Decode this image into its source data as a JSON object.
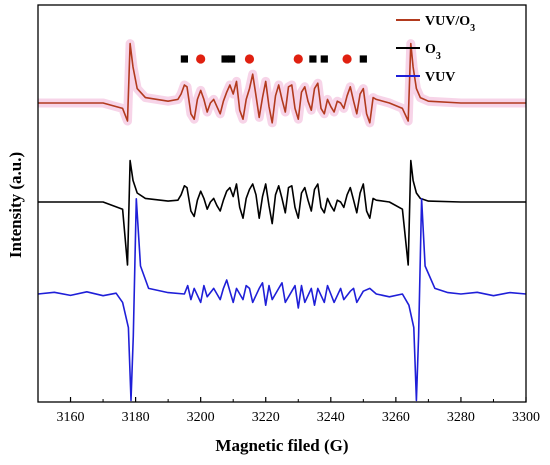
{
  "chart_data": {
    "type": "line",
    "title": "",
    "xlabel": "Magnetic filed (G)",
    "ylabel": "Intensity (a.u.)",
    "xlim": [
      3150,
      3300
    ],
    "x_ticks": [
      3160,
      3180,
      3200,
      3220,
      3240,
      3260,
      3280,
      3300
    ],
    "y_ticks_visible": false,
    "grid": false,
    "legend_position": "top-right",
    "series": [
      {
        "name": "VUV/O3",
        "color": "#b23a1e",
        "highlight_color": "#f4c6e0",
        "x": [
          3150,
          3170,
          3176,
          3177.5,
          3178.3,
          3179.2,
          3180.5,
          3183,
          3190,
          3193,
          3194,
          3195,
          3195.8,
          3197,
          3198,
          3199,
          3200,
          3201,
          3202,
          3203,
          3204,
          3205,
          3206,
          3207,
          3208,
          3209,
          3210,
          3211,
          3212,
          3213,
          3214,
          3215,
          3216,
          3217,
          3218,
          3219,
          3220,
          3221,
          3222,
          3223,
          3224,
          3225,
          3226,
          3227,
          3228,
          3229,
          3230,
          3231,
          3232,
          3233,
          3234,
          3235,
          3236,
          3237,
          3238,
          3239,
          3240,
          3241,
          3242,
          3243,
          3244,
          3245,
          3246,
          3247,
          3248,
          3249,
          3250,
          3251,
          3252,
          3253,
          3254,
          3258,
          3262,
          3263.8,
          3264.6,
          3265.3,
          3266.3,
          3267.5,
          3270,
          3280,
          3290,
          3300
        ],
        "y": [
          0.0,
          0.0,
          -0.3,
          -1.0,
          3.3,
          2.0,
          0.8,
          0.3,
          0.1,
          0.2,
          0.5,
          1.0,
          0.9,
          -0.6,
          -0.9,
          0.2,
          0.7,
          0.2,
          -0.5,
          0.0,
          0.2,
          -0.2,
          -0.6,
          0.1,
          0.6,
          1.0,
          0.5,
          1.2,
          -0.4,
          -0.9,
          0.2,
          0.8,
          1.6,
          0.4,
          -0.8,
          0.3,
          1.2,
          -0.2,
          -1.1,
          0.4,
          1.0,
          0.2,
          -0.5,
          0.9,
          1.0,
          -0.3,
          -0.9,
          0.6,
          0.9,
          0.1,
          -0.4,
          0.8,
          1.1,
          -0.3,
          -0.6,
          0.2,
          -0.2,
          -0.5,
          0.1,
          0.0,
          -0.3,
          0.4,
          0.9,
          0.1,
          -0.6,
          0.5,
          0.8,
          -0.6,
          -1.1,
          0.3,
          0.2,
          0.0,
          -0.3,
          -1.0,
          3.3,
          2.0,
          0.8,
          0.3,
          0.1,
          0.0,
          0.0,
          0.0
        ],
        "hyperfine_markers": [
          {
            "x": 3195,
            "shape": "square",
            "color": "#000000"
          },
          {
            "x": 3200,
            "shape": "circle",
            "color": "#e02010"
          },
          {
            "x": 3207.5,
            "shape": "square",
            "color": "#000000"
          },
          {
            "x": 3209.5,
            "shape": "square",
            "color": "#000000"
          },
          {
            "x": 3215,
            "shape": "circle",
            "color": "#e02010"
          },
          {
            "x": 3230,
            "shape": "circle",
            "color": "#e02010"
          },
          {
            "x": 3234.5,
            "shape": "square",
            "color": "#000000"
          },
          {
            "x": 3238,
            "shape": "square",
            "color": "#000000"
          },
          {
            "x": 3245,
            "shape": "circle",
            "color": "#e02010"
          },
          {
            "x": 3250,
            "shape": "square",
            "color": "#000000"
          }
        ]
      },
      {
        "name": "O3",
        "color": "#000000",
        "x": [
          3150,
          3170,
          3176,
          3177.5,
          3178.3,
          3179.2,
          3180.5,
          3183,
          3190,
          3193,
          3194,
          3195,
          3195.8,
          3197,
          3198,
          3199,
          3200,
          3201,
          3202,
          3203,
          3204,
          3205,
          3206,
          3207,
          3208,
          3209,
          3210,
          3211,
          3212,
          3213,
          3214,
          3215,
          3216,
          3217,
          3218,
          3219,
          3220,
          3221,
          3222,
          3223,
          3224,
          3225,
          3226,
          3227,
          3228,
          3229,
          3230,
          3231,
          3232,
          3233,
          3234,
          3235,
          3236,
          3237,
          3238,
          3239,
          3240,
          3241,
          3242,
          3243,
          3244,
          3245,
          3246,
          3247,
          3248,
          3249,
          3250,
          3251,
          3252,
          3253,
          3254,
          3258,
          3262,
          3263.8,
          3264.6,
          3265.3,
          3266.3,
          3267.5,
          3270,
          3280,
          3290,
          3300
        ],
        "y": [
          0.0,
          0.0,
          -0.4,
          -3.5,
          2.3,
          1.2,
          0.5,
          0.2,
          0.05,
          0.1,
          0.4,
          0.9,
          0.8,
          -0.5,
          -0.8,
          0.1,
          0.6,
          0.2,
          -0.4,
          0.0,
          0.2,
          -0.2,
          -0.5,
          0.1,
          0.6,
          0.8,
          0.3,
          1.0,
          -0.3,
          -0.9,
          0.2,
          0.7,
          1.0,
          0.4,
          -0.9,
          0.3,
          1.0,
          -0.2,
          -1.2,
          0.4,
          0.9,
          0.2,
          -0.6,
          0.8,
          0.9,
          -0.3,
          -0.9,
          0.5,
          0.8,
          0.1,
          -0.5,
          0.7,
          1.0,
          -0.3,
          -0.6,
          0.2,
          -0.2,
          -0.5,
          0.1,
          0.0,
          -0.3,
          0.4,
          0.8,
          0.1,
          -0.6,
          0.5,
          1.0,
          -0.5,
          -0.9,
          0.2,
          0.1,
          0.0,
          -0.4,
          -3.5,
          2.3,
          1.2,
          0.5,
          0.2,
          0.05,
          0.0,
          0.0,
          0.0
        ]
      },
      {
        "name": "VUV",
        "color": "#1f1fd8",
        "x": [
          3150,
          3155,
          3160,
          3165,
          3170,
          3174,
          3176,
          3177.8,
          3178.6,
          3179.3,
          3180.2,
          3181.5,
          3184,
          3190,
          3195,
          3196,
          3197,
          3198,
          3200,
          3201,
          3202,
          3204,
          3206,
          3207,
          3208,
          3209,
          3210,
          3211,
          3213,
          3214,
          3215,
          3216,
          3218,
          3219,
          3220,
          3221,
          3222,
          3224,
          3225,
          3226,
          3228,
          3229,
          3230,
          3231,
          3232,
          3234,
          3235,
          3236,
          3238,
          3239,
          3240,
          3241,
          3243,
          3244,
          3246,
          3247,
          3248,
          3250,
          3252,
          3254,
          3258,
          3262,
          3264,
          3265.5,
          3266.3,
          3267.0,
          3267.9,
          3269,
          3272,
          3276,
          3280,
          3285,
          3290,
          3295,
          3300
        ],
        "y": [
          0.0,
          0.06,
          -0.05,
          0.08,
          -0.06,
          0.03,
          -0.3,
          -1.2,
          -3.8,
          -1.5,
          3.4,
          1.0,
          0.2,
          0.05,
          0.0,
          0.3,
          -0.2,
          0.2,
          -0.3,
          0.3,
          -0.1,
          0.2,
          -0.2,
          0.2,
          0.5,
          0.1,
          -0.3,
          0.2,
          -0.2,
          0.3,
          0.2,
          -0.3,
          0.2,
          0.4,
          -0.4,
          0.3,
          -0.2,
          0.2,
          0.4,
          -0.3,
          0.1,
          0.3,
          -0.5,
          0.3,
          -0.3,
          0.2,
          -0.4,
          0.2,
          -0.3,
          0.3,
          0.0,
          -0.3,
          0.2,
          -0.2,
          0.1,
          0.2,
          -0.3,
          0.1,
          0.2,
          0.0,
          -0.1,
          0.0,
          -0.4,
          -1.2,
          -3.8,
          -1.5,
          3.4,
          1.0,
          0.2,
          0.05,
          0.0,
          0.06,
          -0.06,
          0.05,
          0.0
        ]
      }
    ],
    "legend": [
      {
        "label": "VUV/O",
        "sub": "3",
        "color": "#b23a1e"
      },
      {
        "label": "O",
        "sub": "3",
        "color": "#000000"
      },
      {
        "label": "VUV",
        "sub": "",
        "color": "#1f1fd8"
      }
    ]
  }
}
